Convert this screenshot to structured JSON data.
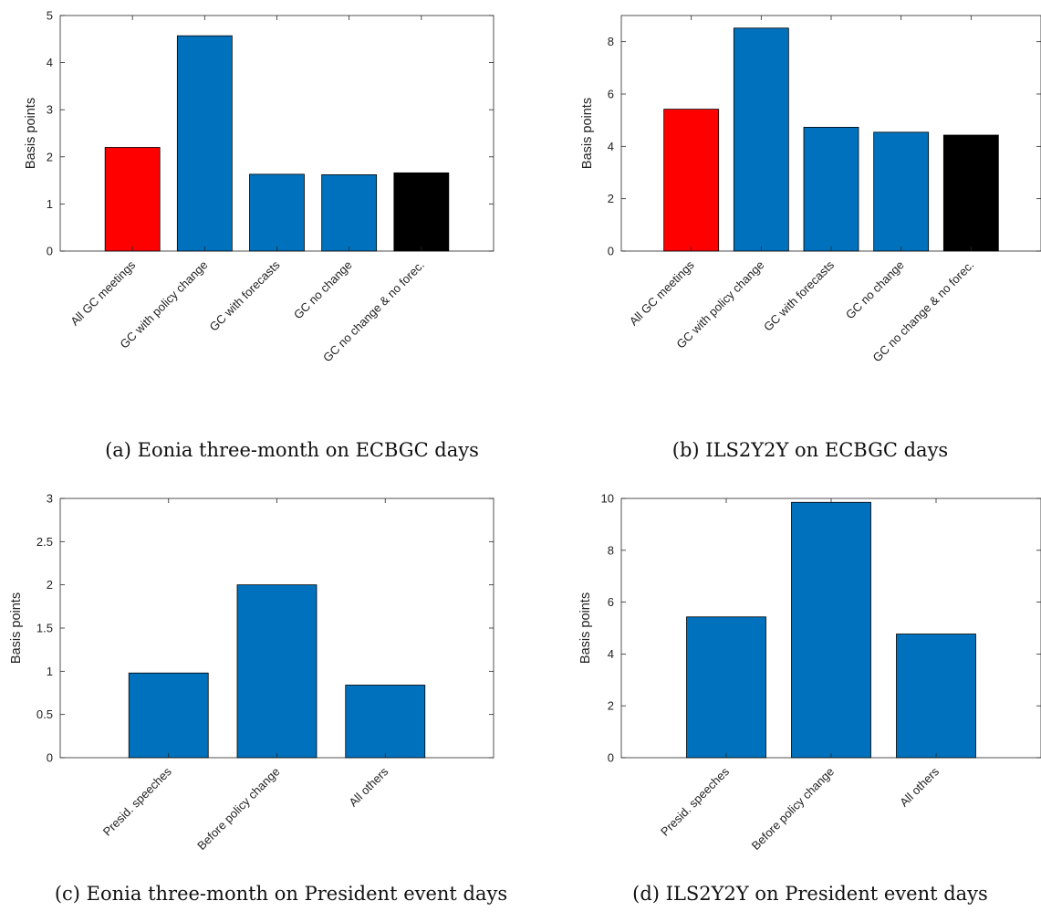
{
  "figure": {
    "panels": [
      {
        "caption": "(a) Eonia three-month on ECBGC days"
      },
      {
        "caption": "(b) ILS2Y2Y on ECBGC days"
      },
      {
        "caption": "(c) Eonia three-month on President event days"
      },
      {
        "caption": "(d) ILS2Y2Y on President event days"
      }
    ]
  },
  "chart_data": [
    {
      "type": "bar",
      "categories": [
        "All GC meetings",
        "GC with policy change",
        "GC with forecasts",
        "GC no change",
        "GC no change & no forec."
      ],
      "values": [
        2.2,
        4.57,
        1.63,
        1.62,
        1.66
      ],
      "bar_colors": [
        "#ff0000",
        "#0072bd",
        "#0072bd",
        "#0072bd",
        "#000000"
      ],
      "ylabel": "Basis points",
      "ylim": [
        0,
        5
      ],
      "yticks": [
        0,
        1,
        2,
        3,
        4,
        5
      ],
      "ytick_labels": [
        "0",
        "1",
        "2",
        "3",
        "4",
        "5"
      ],
      "grid": false
    },
    {
      "type": "bar",
      "categories": [
        "All GC meetings",
        "GC with policy change",
        "GC with forecasts",
        "GC no change",
        "GC no change & no forec."
      ],
      "values": [
        5.42,
        8.52,
        4.73,
        4.54,
        4.43
      ],
      "bar_colors": [
        "#ff0000",
        "#0072bd",
        "#0072bd",
        "#0072bd",
        "#000000"
      ],
      "ylabel": "Basis points",
      "ylim": [
        0,
        9
      ],
      "yticks": [
        0,
        2,
        4,
        6,
        8
      ],
      "ytick_labels": [
        "0",
        "2",
        "4",
        "6",
        "8"
      ],
      "grid": false
    },
    {
      "type": "bar",
      "categories": [
        "Presid. speeches",
        "Before policy change",
        "All others"
      ],
      "values": [
        0.98,
        2.0,
        0.84
      ],
      "bar_colors": [
        "#0072bd",
        "#0072bd",
        "#0072bd"
      ],
      "ylabel": "Basis points",
      "ylim": [
        0,
        3
      ],
      "yticks": [
        0,
        0.5,
        1,
        1.5,
        2,
        2.5,
        3
      ],
      "ytick_labels": [
        "0",
        "0.5",
        "1",
        "1.5",
        "2",
        "2.5",
        "3"
      ],
      "grid": false
    },
    {
      "type": "bar",
      "categories": [
        "Presid. speeches",
        "Before policy change",
        "All others"
      ],
      "values": [
        5.43,
        9.85,
        4.77
      ],
      "bar_colors": [
        "#0072bd",
        "#0072bd",
        "#0072bd"
      ],
      "ylabel": "Basis points",
      "ylim": [
        0,
        10
      ],
      "yticks": [
        0,
        2,
        4,
        6,
        8,
        10
      ],
      "ytick_labels": [
        "0",
        "2",
        "4",
        "6",
        "8",
        "10"
      ],
      "grid": false
    }
  ]
}
